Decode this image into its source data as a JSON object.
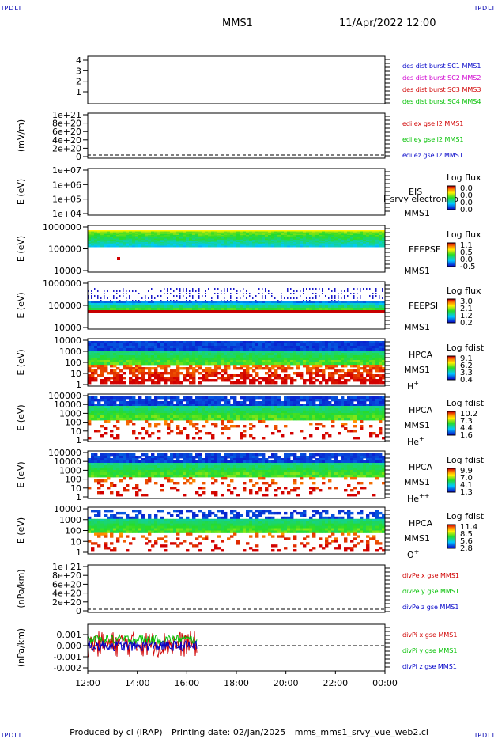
{
  "corner_labels": {
    "tl": "IPDLI",
    "tr": "IPDLI",
    "bl": "IPDLI",
    "br": "IPDLI"
  },
  "header": {
    "spacecraft": "MMS1",
    "datetime": "11/Apr/2022 12:00"
  },
  "footer": {
    "produced_by": "Produced by cl (IRAP)",
    "printing_date": "Printing date: 02/Jan/2025",
    "filename": "mms_mms1_srvy_vue_web2.cl"
  },
  "time_axis": {
    "ticks": [
      "12:00",
      "14:00",
      "16:00",
      "18:00",
      "20:00",
      "22:00",
      "00:00"
    ]
  },
  "panels": [
    {
      "id": "p1",
      "type": "legend-only",
      "yticks": [
        "4",
        "3",
        "2",
        "1"
      ],
      "legend": [
        {
          "text": "des dist burst SC1 MMS1",
          "color": "#0000c8"
        },
        {
          "text": "des dist burst SC2 MMS2",
          "color": "#d000d0"
        },
        {
          "text": "des dist burst SC3 MMS3",
          "color": "#d00000"
        },
        {
          "text": "des dist burst SC4 MMS4",
          "color": "#00c000"
        }
      ]
    },
    {
      "id": "p2",
      "type": "line",
      "ylabel": "(mV/m)",
      "yticks": [
        "1e+21",
        "8e+20",
        "6e+20",
        "4e+20",
        "2e+20",
        "0"
      ],
      "legend": [
        {
          "text": "edi ex gse l2 MMS1",
          "color": "#d00000"
        },
        {
          "text": "edi ey gse l2 MMS1",
          "color": "#00c000"
        },
        {
          "text": "edi ez gse l2 MMS1",
          "color": "#0000c8"
        }
      ]
    },
    {
      "id": "p3",
      "type": "spectrogram-empty",
      "ylabel": "E (eV)",
      "yticks": [
        "1e+07",
        "1e+06",
        "1e+05",
        "1e+04"
      ],
      "instrument": [
        "EIS",
        "MMS1"
      ],
      "overlay_text": "l_srvy electron to",
      "colorbar": {
        "title": "Log flux",
        "ticks": [
          "0.0",
          "0.0",
          "0.0",
          "0.0"
        ]
      }
    },
    {
      "id": "p4",
      "type": "spectrogram",
      "ylabel": "E (eV)",
      "yticks": [
        "1000000",
        "100000",
        "10000"
      ],
      "instrument": [
        "FEEPSE",
        "MMS1"
      ],
      "colorbar": {
        "title": "Log flux",
        "ticks": [
          "1.1",
          "0.5",
          "0.0",
          "-0.5"
        ]
      }
    },
    {
      "id": "p5",
      "type": "spectrogram",
      "ylabel": "E (eV)",
      "yticks": [
        "1000000",
        "100000",
        "10000"
      ],
      "instrument": [
        "FEEPSI",
        "MMS1"
      ],
      "colorbar": {
        "title": "Log flux",
        "ticks": [
          "3.0",
          "2.1",
          "1.2",
          "0.2"
        ]
      }
    },
    {
      "id": "p6",
      "type": "spectrogram",
      "ylabel": "E (eV)",
      "yticks": [
        "10000",
        "1000",
        "100",
        "10",
        "1"
      ],
      "instrument": [
        "HPCA",
        "MMS1",
        "H+"
      ],
      "colorbar": {
        "title": "Log fdist",
        "ticks": [
          "9.1",
          "6.2",
          "3.3",
          "0.4"
        ]
      }
    },
    {
      "id": "p7",
      "type": "spectrogram",
      "ylabel": "E (eV)",
      "yticks": [
        "100000",
        "10000",
        "1000",
        "100",
        "10",
        "1"
      ],
      "instrument": [
        "HPCA",
        "MMS1",
        "He+"
      ],
      "colorbar": {
        "title": "Log fdist",
        "ticks": [
          "10.2",
          "7.3",
          "4.4",
          "1.6"
        ]
      }
    },
    {
      "id": "p8",
      "type": "spectrogram",
      "ylabel": "E (eV)",
      "yticks": [
        "100000",
        "10000",
        "1000",
        "100",
        "10",
        "1"
      ],
      "instrument": [
        "HPCA",
        "MMS1",
        "He++"
      ],
      "colorbar": {
        "title": "Log fdist",
        "ticks": [
          "9.9",
          "7.0",
          "4.1",
          "1.3"
        ]
      }
    },
    {
      "id": "p9",
      "type": "spectrogram",
      "ylabel": "E (eV)",
      "yticks": [
        "10000",
        "1000",
        "100",
        "10",
        "1"
      ],
      "instrument": [
        "HPCA",
        "MMS1",
        "O+"
      ],
      "colorbar": {
        "title": "Log fdist",
        "ticks": [
          "11.4",
          "8.5",
          "5.6",
          "2.8"
        ]
      }
    },
    {
      "id": "p10",
      "type": "line",
      "ylabel": "(nPa/km)",
      "yticks": [
        "1e+21",
        "8e+20",
        "6e+20",
        "4e+20",
        "2e+20",
        "0"
      ],
      "legend": [
        {
          "text": "divPe x gse MMS1",
          "color": "#d00000"
        },
        {
          "text": "divPe y gse MMS1",
          "color": "#00c000"
        },
        {
          "text": "divPe z gse MMS1",
          "color": "#0000c8"
        }
      ]
    },
    {
      "id": "p11",
      "type": "line",
      "ylabel": "(nPa/km)",
      "yticks": [
        "0.001",
        "0.000",
        "-0.001",
        "-0.002"
      ],
      "legend": [
        {
          "text": "divPi x gse MMS1",
          "color": "#d00000"
        },
        {
          "text": "divPi y gse MMS1",
          "color": "#00c000"
        },
        {
          "text": "divPi z gse MMS1",
          "color": "#0000c8"
        }
      ]
    }
  ],
  "chart_data": {
    "type": "line",
    "title": "",
    "xlabel": "",
    "x_range": [
      "12:00",
      "00:00"
    ],
    "divPi_ylim": [
      -0.0025,
      0.0015
    ],
    "divPi_data_end": "16:25",
    "series": [
      {
        "name": "divPi x gse MMS1",
        "color": "#d00000",
        "approx_range": [
          -0.0013,
          0.0009
        ]
      },
      {
        "name": "divPi y gse MMS1",
        "color": "#00c000",
        "approx_range": [
          -0.0002,
          0.0006
        ]
      },
      {
        "name": "divPi z gse MMS1",
        "color": "#0000c8",
        "approx_range": [
          -0.0008,
          0.0001
        ]
      }
    ],
    "colorscale": "rainbow (blue-green-yellow-red)"
  }
}
